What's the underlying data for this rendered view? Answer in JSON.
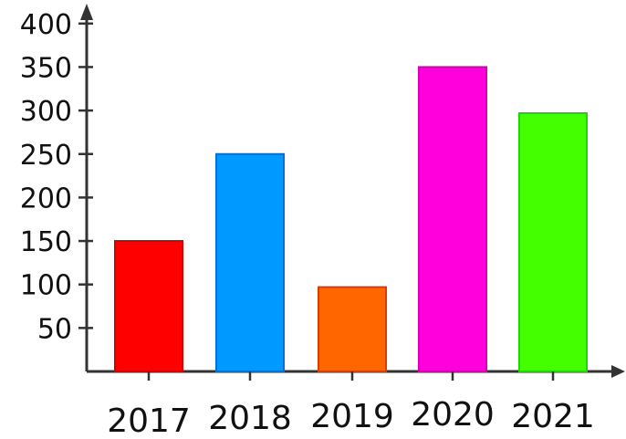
{
  "chart_data": {
    "type": "bar",
    "title": "",
    "xlabel": "",
    "ylabel": "",
    "categories": [
      "2017",
      "2018",
      "2019",
      "2020",
      "2021"
    ],
    "values": [
      150,
      250,
      97,
      350,
      297
    ],
    "colors": [
      "#ff0000",
      "#0099ff",
      "#ff6600",
      "#ff00dd",
      "#44ff00"
    ],
    "ylim": [
      0,
      400
    ],
    "yticks": [
      50,
      100,
      150,
      200,
      250,
      300,
      350,
      400
    ],
    "ytick_labels": [
      "50",
      "100",
      "150",
      "200",
      "250",
      "300",
      "350",
      "400"
    ],
    "grid": false,
    "legend": "none"
  }
}
